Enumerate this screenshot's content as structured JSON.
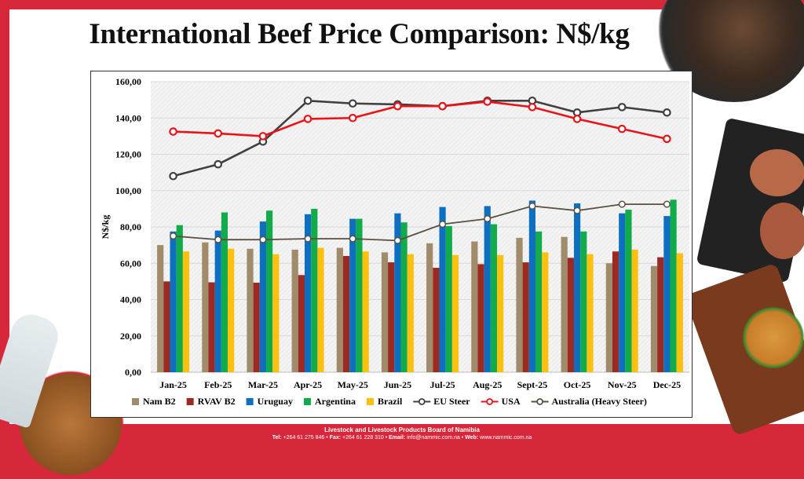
{
  "title": "International Beef Price Comparison: N$/kg",
  "footer": {
    "org": "Livestock and Livestock Products Board of Namibia",
    "tel_label": "Tel:",
    "tel": "+264 61 275 846",
    "fax_label": "Fax:",
    "fax": "+264 61 228 310",
    "email_label": "Email:",
    "email": "info@nammic.com.na",
    "web_label": "Web:",
    "web": "www.nammic.com.na"
  },
  "colors": {
    "frame": "#d7283b"
  },
  "chart_data": {
    "type": "bar+line",
    "title": "International Beef Price Comparison: N$/kg",
    "ylabel": "N$/kg",
    "xlabel": "",
    "ylim": [
      0,
      160
    ],
    "yticks": [
      "0,00",
      "20,00",
      "40,00",
      "60,00",
      "80,00",
      "100,00",
      "120,00",
      "140,00",
      "160,00"
    ],
    "grid": true,
    "legend": "bottom",
    "categories": [
      "Jan-25",
      "Feb-25",
      "Mar-25",
      "Apr-25",
      "May-25",
      "Jun-25",
      "Jul-25",
      "Aug-25",
      "Sept-25",
      "Oct-25",
      "Nov-25",
      "Dec-25"
    ],
    "series": [
      {
        "name": "Nam B2",
        "kind": "bar",
        "color": "#a08b6a",
        "values": [
          70,
          71.5,
          68,
          67.5,
          68.5,
          66,
          71,
          72,
          74,
          74.5,
          60,
          58.5
        ]
      },
      {
        "name": "RVAV B2",
        "kind": "bar",
        "color": "#9b2a22",
        "values": [
          50,
          49.5,
          49.3,
          53.5,
          64,
          60.5,
          57.5,
          59.5,
          60.5,
          63,
          66.5,
          63.3
        ]
      },
      {
        "name": "Uruguay",
        "kind": "bar",
        "color": "#0e6fc0",
        "values": [
          77.5,
          78,
          83,
          87,
          84.5,
          87.5,
          91,
          91.5,
          94.5,
          93,
          87.5,
          86
        ]
      },
      {
        "name": "Argentina",
        "kind": "bar",
        "color": "#12ab4c",
        "values": [
          81,
          88,
          89,
          90,
          84.5,
          82.5,
          80.5,
          81.5,
          77.5,
          77.5,
          89.5,
          95
        ]
      },
      {
        "name": "Brazil",
        "kind": "bar",
        "color": "#fcc10e",
        "values": [
          66.5,
          68,
          65,
          68.5,
          66.5,
          65,
          64.5,
          64.5,
          66,
          65,
          67.5,
          65.5
        ]
      },
      {
        "name": "EU Steer",
        "kind": "line",
        "color": "#404040",
        "values": [
          108,
          114.5,
          127,
          149.5,
          148,
          147.5,
          146.5,
          149.5,
          149.5,
          143,
          146,
          143
        ]
      },
      {
        "name": "USA",
        "kind": "line",
        "color": "#e8141a",
        "values": [
          132.5,
          131.5,
          130,
          139.5,
          140,
          146.5,
          146.5,
          149,
          146,
          139.5,
          134,
          128.5
        ]
      },
      {
        "name": "Australia (Heavy Steer)",
        "kind": "line",
        "color": "#5a5040",
        "values": [
          75,
          73,
          73,
          73.5,
          73.5,
          72.5,
          81.5,
          84.5,
          91.5,
          89,
          92.5,
          92.5
        ]
      }
    ]
  }
}
